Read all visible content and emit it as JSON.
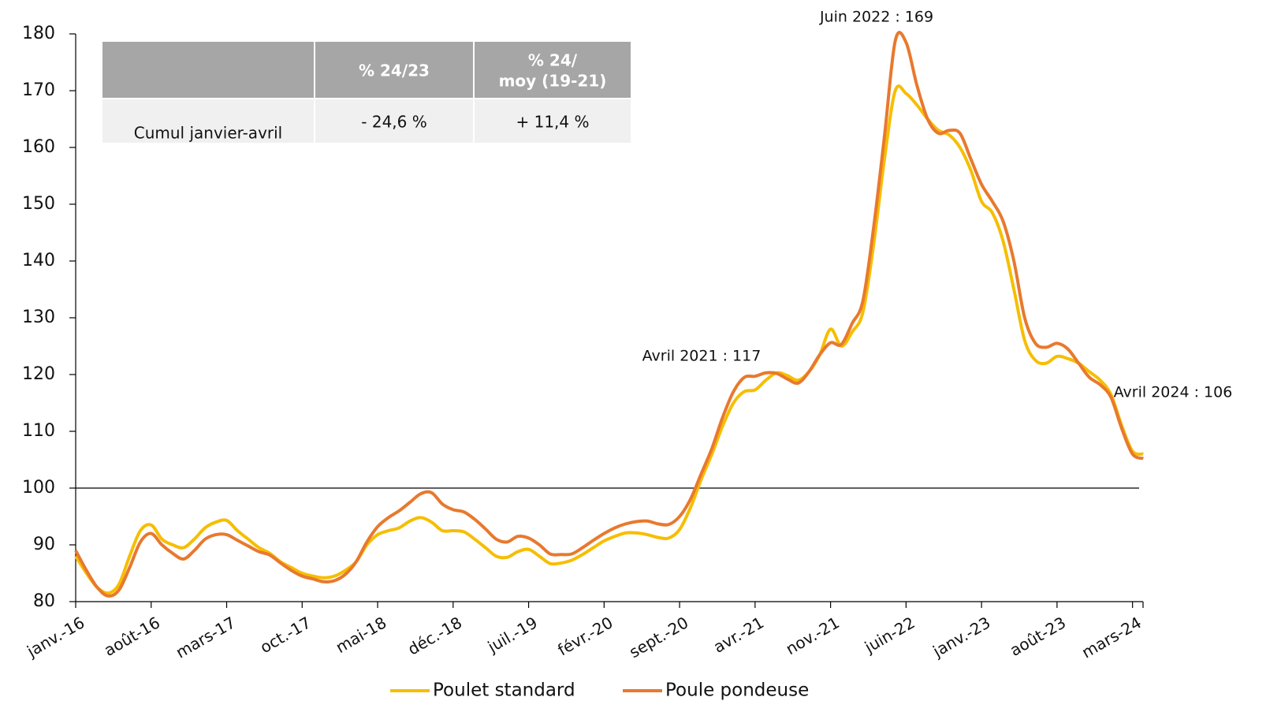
{
  "chart_data": {
    "type": "line",
    "categories": [
      "janv.-16",
      null,
      null,
      null,
      null,
      null,
      null,
      "août-16",
      null,
      null,
      null,
      null,
      null,
      null,
      "mars-17",
      null,
      null,
      null,
      null,
      null,
      null,
      "oct.-17",
      null,
      null,
      null,
      null,
      null,
      null,
      "mai-18",
      null,
      null,
      null,
      null,
      null,
      null,
      "déc.-18",
      null,
      null,
      null,
      null,
      null,
      null,
      "juil.-19",
      null,
      null,
      null,
      null,
      null,
      null,
      "févr.-20",
      null,
      null,
      null,
      null,
      null,
      null,
      "sept.-20",
      null,
      null,
      null,
      null,
      null,
      null,
      "avr.-21",
      null,
      null,
      null,
      null,
      null,
      null,
      "nov.-21",
      null,
      null,
      null,
      null,
      null,
      null,
      "juin-22",
      null,
      null,
      null,
      null,
      null,
      null,
      "janv.-23",
      null,
      null,
      null,
      null,
      null,
      null,
      "août-23",
      null,
      null,
      null,
      null,
      null,
      null,
      "mars-24",
      null
    ],
    "series": [
      {
        "name": "Poulet standard",
        "color": "#f6be00",
        "values": [
          88,
          85,
          82.5,
          81.5,
          83,
          88,
          92.5,
          93.5,
          91,
          90,
          89.5,
          91,
          93,
          94,
          94.3,
          92.5,
          91,
          89.5,
          88.5,
          87,
          86,
          85,
          84.5,
          84.2,
          84.5,
          85.5,
          87,
          90,
          91.8,
          92.5,
          93,
          94.2,
          94.8,
          94,
          92.5,
          92.5,
          92.3,
          91,
          89.5,
          88,
          87.8,
          88.8,
          89.2,
          88,
          86.7,
          86.8,
          87.3,
          88.3,
          89.5,
          90.7,
          91.5,
          92.1,
          92.1,
          91.8,
          91.3,
          91.2,
          92.7,
          96.5,
          101.5,
          106,
          111,
          115,
          117,
          117.3,
          119,
          120.3,
          119.8,
          119,
          120.5,
          123.5,
          128,
          125,
          127.5,
          131,
          143,
          158,
          170,
          169.5,
          167.5,
          165,
          163,
          162.2,
          160,
          156,
          150.5,
          148.5,
          143.5,
          135,
          126,
          122.5,
          122,
          123.2,
          122.8,
          122,
          120.5,
          119,
          116.5,
          111,
          106.5,
          106
        ]
      },
      {
        "name": "Poule pondeuse",
        "color": "#e8792e",
        "values": [
          89,
          85.5,
          82.5,
          81,
          82,
          86,
          90.5,
          92,
          90,
          88.5,
          87.5,
          89,
          91,
          91.8,
          91.8,
          90.8,
          89.8,
          88.8,
          88.2,
          86.8,
          85.5,
          84.5,
          84,
          83.5,
          83.7,
          84.8,
          87,
          90.5,
          93.2,
          94.8,
          96,
          97.5,
          99,
          99.2,
          97.2,
          96.2,
          95.8,
          94.5,
          92.8,
          91,
          90.5,
          91.5,
          91.2,
          90,
          88.4,
          88.3,
          88.4,
          89.5,
          90.8,
          92,
          93,
          93.7,
          94.1,
          94.2,
          93.7,
          93.6,
          95,
          98,
          102.5,
          107,
          112.5,
          117,
          119.5,
          119.7,
          120.3,
          120.2,
          119.2,
          118.5,
          120.5,
          123.5,
          125.6,
          125.3,
          129,
          133,
          146,
          162,
          178.8,
          178.5,
          171,
          165,
          162.5,
          163,
          162.5,
          158,
          153.5,
          150.5,
          147,
          140,
          130,
          125.5,
          124.8,
          125.5,
          124.5,
          122,
          119.5,
          118.2,
          116,
          110.5,
          106,
          105.2
        ]
      }
    ],
    "ylim": [
      80,
      180
    ],
    "yticks": [
      80,
      90,
      100,
      110,
      120,
      130,
      140,
      150,
      160,
      170,
      180
    ],
    "reference_line": 100,
    "annotations": [
      {
        "text": "Juin 2022 : 169",
        "index": 77
      },
      {
        "text": "Avril 2021 : 117",
        "index": 63
      },
      {
        "text": "Avril 2024 : 106",
        "index": 99
      }
    ],
    "legend": "bottom"
  },
  "table": {
    "header": [
      "% 24/23",
      [
        "% 24/",
        "moy (19-21)"
      ]
    ],
    "rows": [
      {
        "label": "Cumul janvier-avril",
        "values": [
          "- 24,6 %",
          "+ 11,4 %"
        ]
      }
    ]
  }
}
